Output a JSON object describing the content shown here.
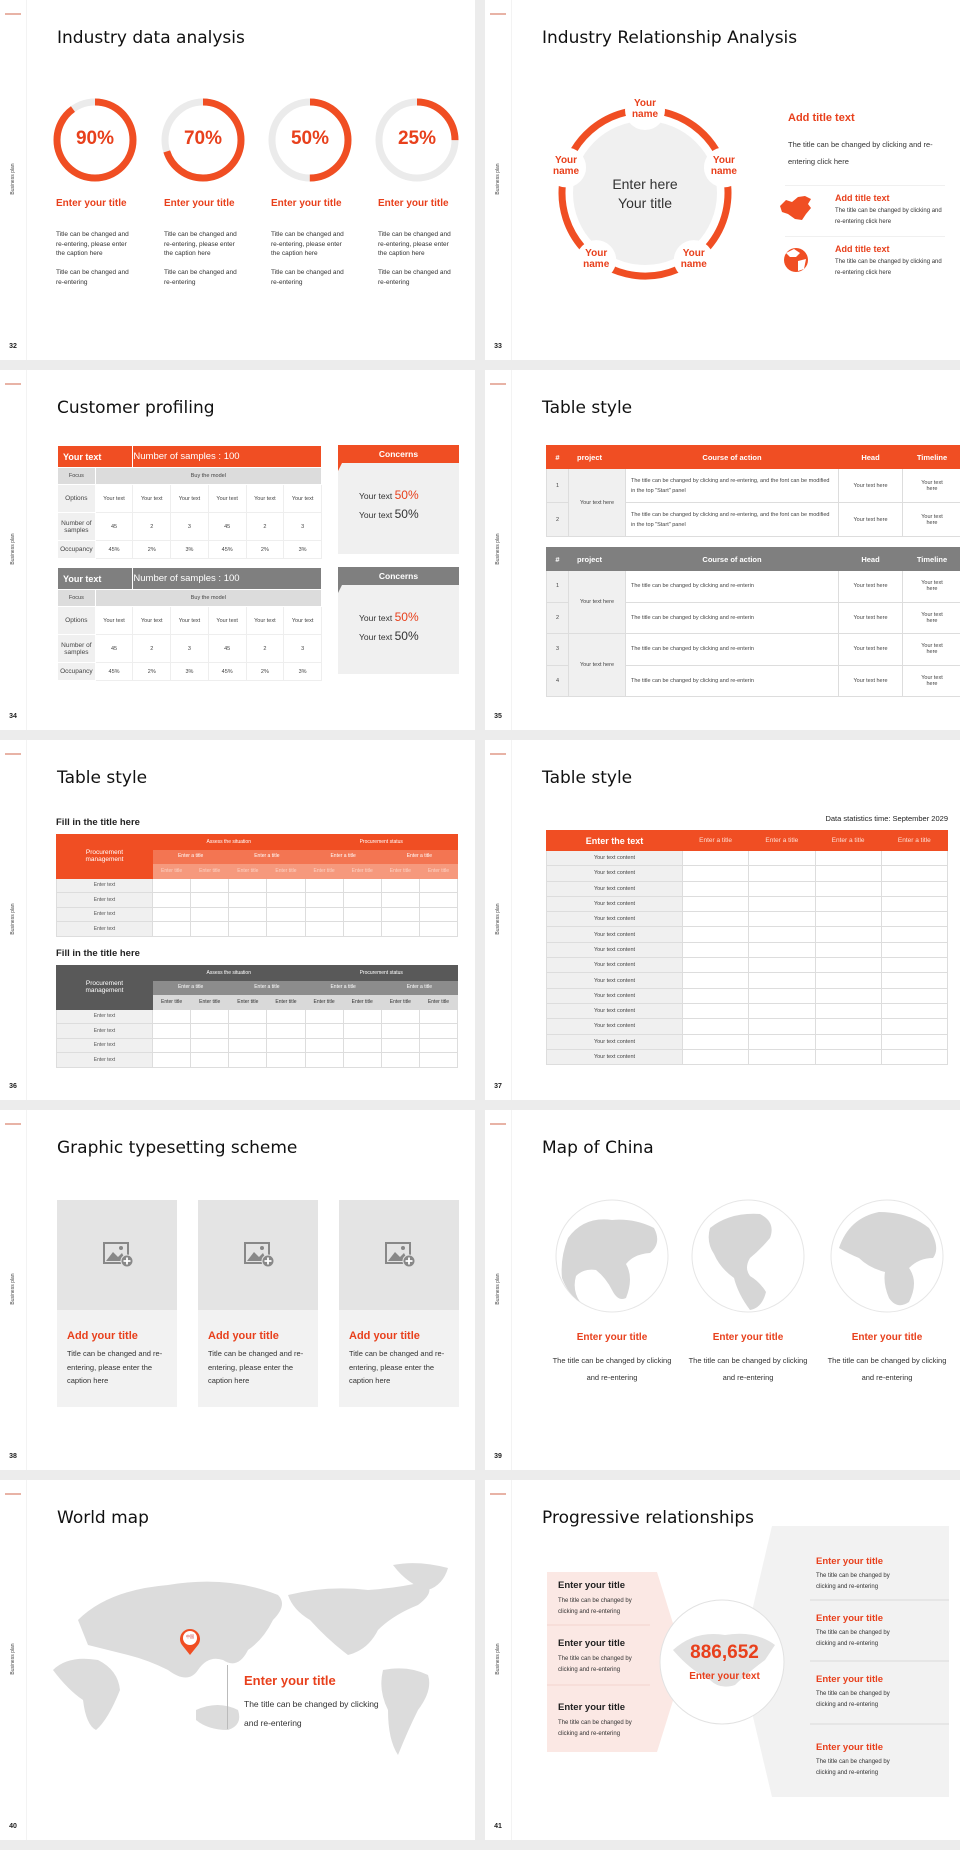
{
  "side_label": "Business plan",
  "colors": {
    "accent": "#f04e23",
    "accent_text": "#e8401c",
    "gray_header": "#7f7f7f",
    "dark_header": "#595959",
    "light_panel": "#f2f2f2",
    "pink_panel": "#fbe8e4"
  },
  "s32": {
    "page": "32",
    "title": "Industry data analysis",
    "items": [
      {
        "value": "90%",
        "percent": 90,
        "title": "Enter your title",
        "body1": "Title can be changed and re-entering, please enter the caption here",
        "body2": "Title can be changed and re-entering"
      },
      {
        "value": "70%",
        "percent": 70,
        "title": "Enter your title",
        "body1": "Title can be changed and re-entering, please enter the caption here",
        "body2": "Title can be changed and re-entering"
      },
      {
        "value": "50%",
        "percent": 50,
        "title": "Enter your title",
        "body1": "Title can be changed and re-entering, please enter the caption here",
        "body2": "Title can be changed and re-entering"
      },
      {
        "value": "25%",
        "percent": 25,
        "title": "Enter your title",
        "body1": "Title can be changed and re-entering, please enter the caption here",
        "body2": "Title can be changed and re-entering"
      }
    ]
  },
  "s33": {
    "page": "33",
    "title": "Industry Relationship Analysis",
    "center_line1": "Enter here",
    "center_line2": "Your title",
    "nodes": [
      "Your name",
      "Your name",
      "Your name",
      "Your name",
      "Your name"
    ],
    "main_title": "Add title text",
    "main_body": "The title can be changed by clicking and re-entering click here",
    "items": [
      {
        "icon": "china-map-icon",
        "title": "Add title text",
        "body": "The title can be changed by clicking and re-entering click here"
      },
      {
        "icon": "globe-icon",
        "title": "Add title text",
        "body": "The title can be changed by clicking and re-entering click here"
      }
    ]
  },
  "s34": {
    "page": "34",
    "title": "Customer profiling",
    "tables": [
      {
        "style": "orange",
        "header_left": "Your text",
        "header_right": "Number of samples : 100",
        "focus": "Focus",
        "focus_value": "Buy the model",
        "rows": [
          {
            "label": "Options",
            "cells": [
              "Your text",
              "Your text",
              "Your text",
              "Your text",
              "Your text",
              "Your text"
            ]
          },
          {
            "label": "Number of samples",
            "cells": [
              "45",
              "2",
              "3",
              "45",
              "2",
              "3"
            ]
          },
          {
            "label": "Occupancy",
            "cells": [
              "45%",
              "2%",
              "3%",
              "45%",
              "2%",
              "3%"
            ]
          }
        ],
        "concerns": {
          "title": "Concerns",
          "lines": [
            {
              "text": "Your text",
              "value": "50%"
            },
            {
              "text": "Your text",
              "value": "50%"
            }
          ]
        }
      },
      {
        "style": "gray",
        "header_left": "Your text",
        "header_right": "Number of samples : 100",
        "focus": "Focus",
        "focus_value": "Buy the model",
        "rows": [
          {
            "label": "Options",
            "cells": [
              "Your text",
              "Your text",
              "Your text",
              "Your text",
              "Your text",
              "Your text"
            ]
          },
          {
            "label": "Number of samples",
            "cells": [
              "45",
              "2",
              "3",
              "45",
              "2",
              "3"
            ]
          },
          {
            "label": "Occupancy",
            "cells": [
              "45%",
              "2%",
              "3%",
              "45%",
              "2%",
              "3%"
            ]
          }
        ],
        "concerns": {
          "title": "Concerns",
          "lines": [
            {
              "text": "Your text",
              "value": "50%"
            },
            {
              "text": "Your text",
              "value": "50%"
            }
          ]
        }
      }
    ]
  },
  "s35": {
    "page": "35",
    "title": "Table style",
    "tables": [
      {
        "style": "orange",
        "headers": [
          "#",
          "project",
          "Course of action",
          "Head",
          "Timeline"
        ],
        "groups": [
          {
            "project": "Your text here",
            "rows": [
              {
                "num": "1",
                "action": "The title can be changed by clicking and re-entering, and the font can be modified in the top \"Start\" panel",
                "head": "Your text here",
                "timeline": "Your text here"
              },
              {
                "num": "2",
                "action": "The title can be changed by clicking and re-entering, and the font can be modified in the top \"Start\" panel",
                "head": "Your text here",
                "timeline": "Your text here"
              }
            ]
          }
        ]
      },
      {
        "style": "gray",
        "headers": [
          "#",
          "project",
          "Course of action",
          "Head",
          "Timeline"
        ],
        "groups": [
          {
            "project": "Your text here",
            "rows": [
              {
                "num": "1",
                "action": "The title can be changed by clicking and re-enterin",
                "head": "Your text here",
                "timeline": "Your text here"
              },
              {
                "num": "2",
                "action": "The title can be changed by clicking and re-enterin",
                "head": "Your text here",
                "timeline": "Your text here"
              }
            ]
          },
          {
            "project": "Your text here",
            "rows": [
              {
                "num": "3",
                "action": "The title can be changed by clicking and re-enterin",
                "head": "Your text here",
                "timeline": "Your text here"
              },
              {
                "num": "4",
                "action": "The title can be changed by clicking and re-enterin",
                "head": "Your text here",
                "timeline": "Your text here"
              }
            ]
          }
        ]
      }
    ]
  },
  "s36": {
    "page": "36",
    "title": "Table style",
    "sections": [
      {
        "style": "orange",
        "title": "Fill in the title here",
        "corner": "Procurement management",
        "groups": [
          "Assess the situation",
          "Procurement status"
        ],
        "subgroups": [
          "Enter a title",
          "Enter a title",
          "Enter a title",
          "Enter a title"
        ],
        "cols": [
          "Enter title",
          "Enter title",
          "Enter title",
          "Enter title",
          "Enter title",
          "Enter title",
          "Enter title",
          "Enter title"
        ],
        "rows": [
          "Enter text",
          "Enter text",
          "Enter text",
          "Enter text"
        ]
      },
      {
        "style": "gray",
        "title": "Fill in the title here",
        "corner": "Procurement management",
        "groups": [
          "Assess the situation",
          "Procurement status"
        ],
        "subgroups": [
          "Enter a title",
          "Enter a title",
          "Enter a title",
          "Enter a title"
        ],
        "cols": [
          "Enter title",
          "Enter title",
          "Enter title",
          "Enter title",
          "Enter title",
          "Enter title",
          "Enter title",
          "Enter title"
        ],
        "rows": [
          "Enter text",
          "Enter text",
          "Enter text",
          "Enter text"
        ]
      }
    ]
  },
  "s37": {
    "page": "37",
    "title": "Table style",
    "stat": "Data statistics time: September 2029",
    "header_first": "Enter the text",
    "headers": [
      "Enter a title",
      "Enter a title",
      "Enter a title",
      "Enter a title"
    ],
    "rows": [
      "Your text content",
      "Your text content",
      "Your text content",
      "Your text content",
      "Your text content",
      "Your text content",
      "Your text content",
      "Your text content",
      "Your text content",
      "Your text content",
      "Your text content",
      "Your text content",
      "Your text content",
      "Your text content"
    ]
  },
  "s38": {
    "page": "38",
    "title": "Graphic typesetting scheme",
    "cards": [
      {
        "title": "Add your title",
        "body": "Title can be changed and re-entering, please enter the caption here"
      },
      {
        "title": "Add your title",
        "body": "Title can be changed and re-entering, please enter the caption here"
      },
      {
        "title": "Add your title",
        "body": "Title can be changed and re-entering, please enter the caption here"
      }
    ]
  },
  "s39": {
    "page": "39",
    "title": "Map of China",
    "items": [
      {
        "title": "Enter your title",
        "body": "The title can be changed by clicking and re-entering"
      },
      {
        "title": "Enter your title",
        "body": "The title can be changed by clicking and re-entering"
      },
      {
        "title": "Enter your title",
        "body": "The title can be changed by clicking and re-entering"
      }
    ]
  },
  "s40": {
    "page": "40",
    "title": "World map",
    "pin_label": "中国",
    "heading": "Enter your title",
    "body": "The title can be changed by clicking and re-entering"
  },
  "s41": {
    "page": "41",
    "title": "Progressive relationships",
    "center_value": "886,652",
    "center_text": "Enter your text",
    "left_items": [
      {
        "title": "Enter your title",
        "body": "The title can be changed by clicking and re-entering"
      },
      {
        "title": "Enter your title",
        "body": "The title can be changed by clicking and re-entering"
      },
      {
        "title": "Enter your title",
        "body": "The title can be changed by clicking and re-entering"
      }
    ],
    "right_items": [
      {
        "title": "Enter your title",
        "body": "The title can be changed by clicking and re-entering"
      },
      {
        "title": "Enter your title",
        "body": "The title can be changed by clicking and re-entering"
      },
      {
        "title": "Enter your title",
        "body": "The title can be changed by clicking and re-entering"
      },
      {
        "title": "Enter your title",
        "body": "The title can be changed by clicking and re-entering"
      }
    ]
  }
}
